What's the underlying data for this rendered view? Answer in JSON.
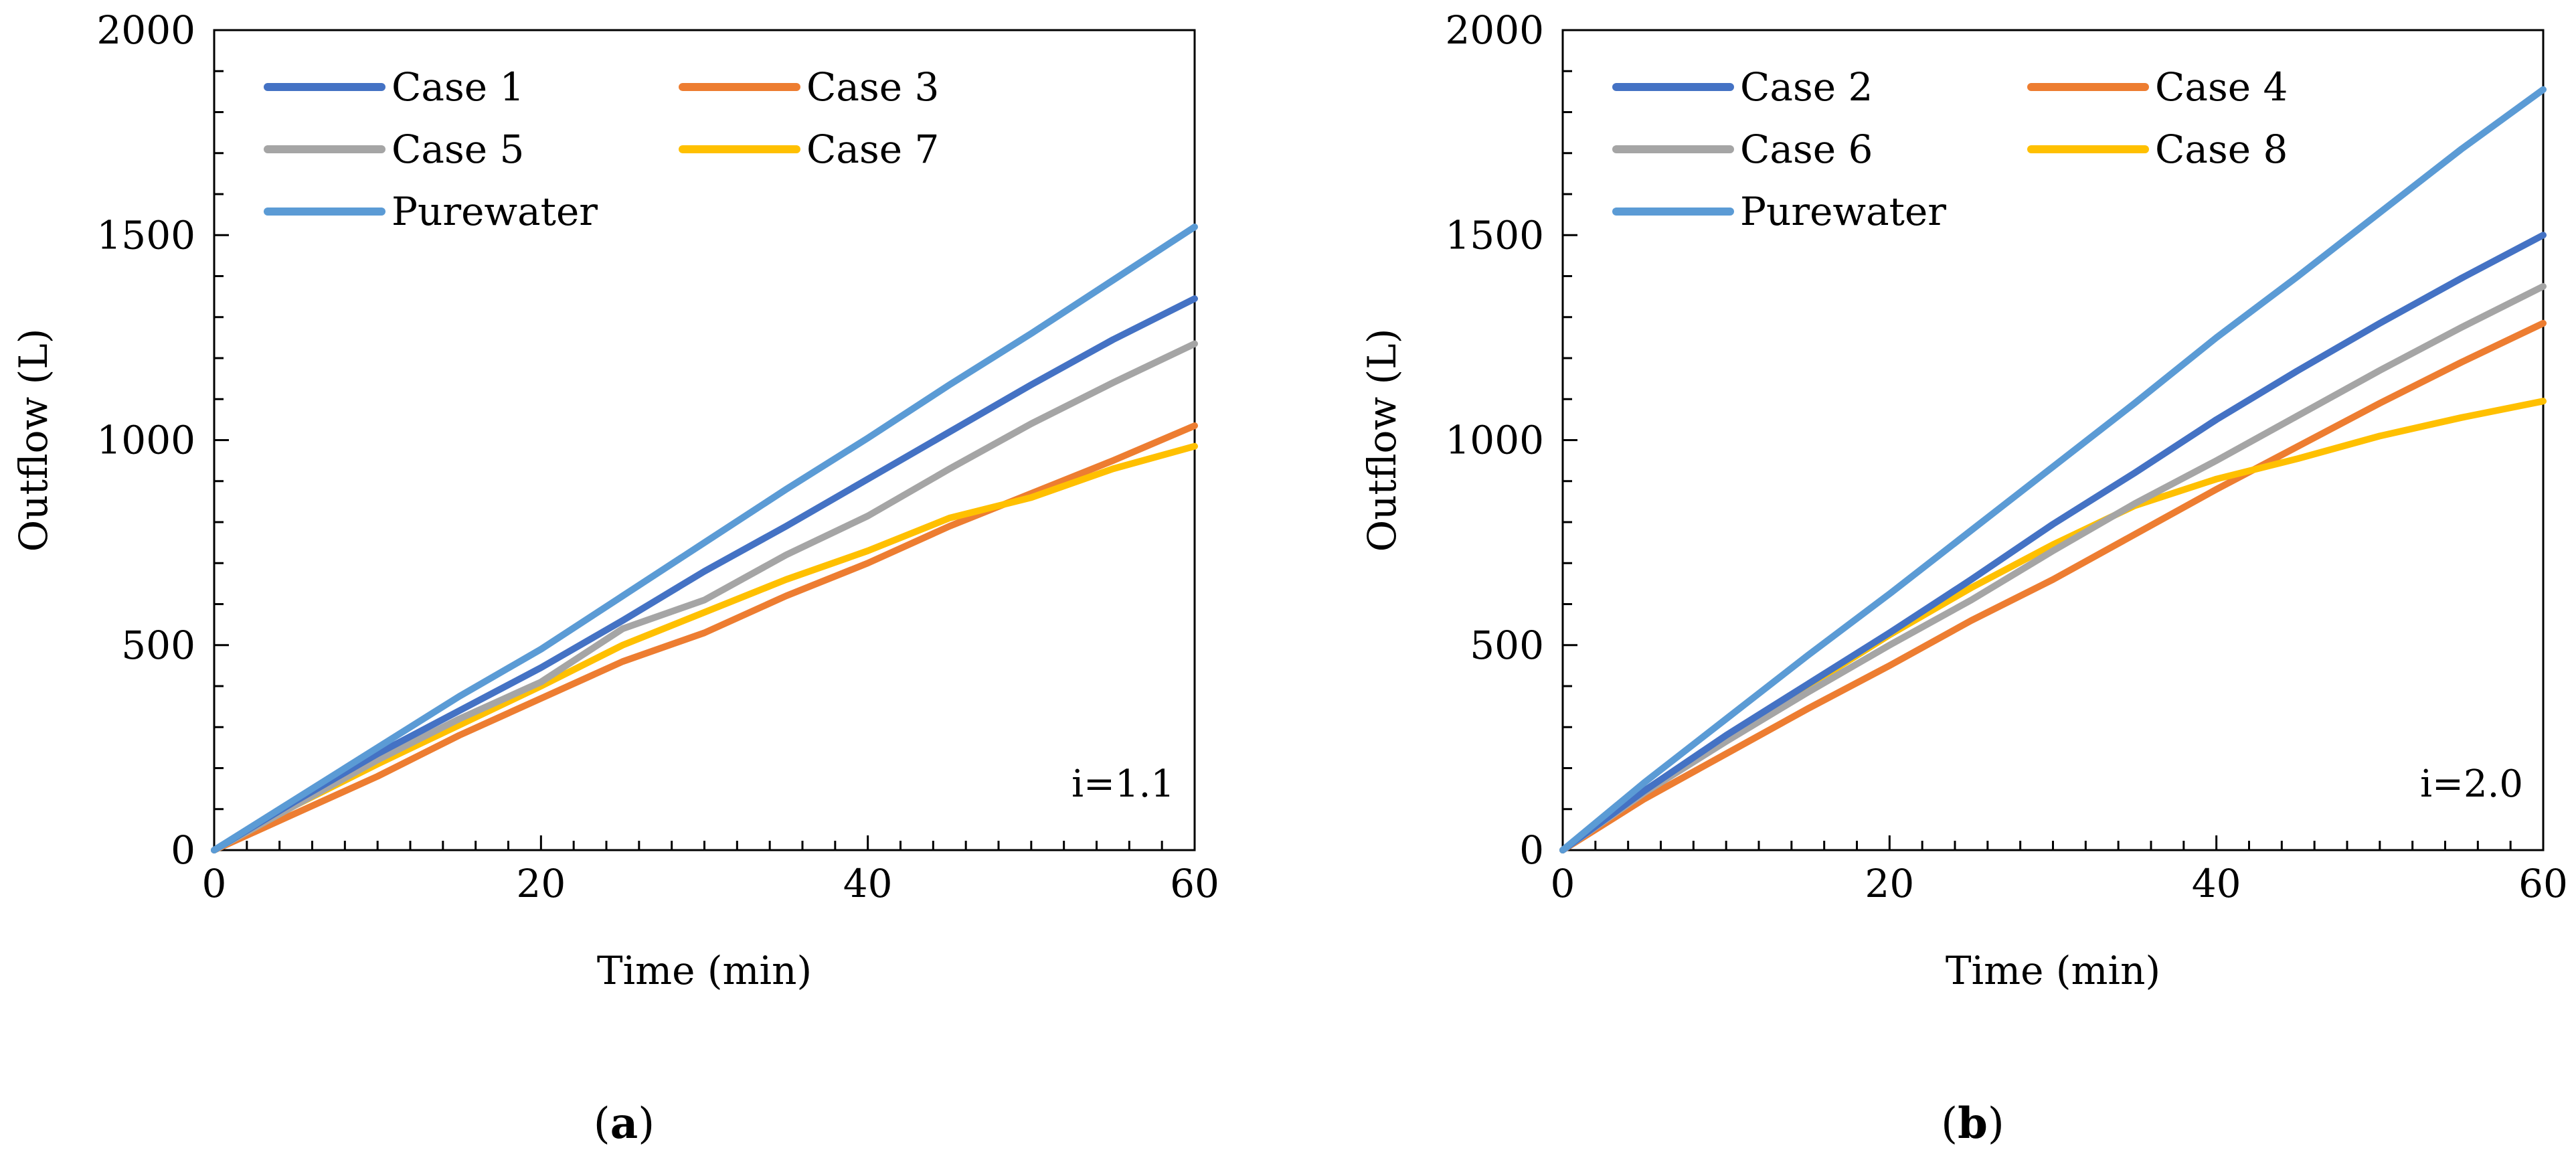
{
  "chart_data": [
    {
      "type": "line",
      "panel_label": "a",
      "annotation": "i=1.1",
      "xlabel": "Time (min)",
      "ylabel": "Outflow (L)",
      "xlim": [
        0,
        60
      ],
      "ylim": [
        0,
        2000
      ],
      "xticks": [
        0,
        20,
        40,
        60
      ],
      "yticks": [
        0,
        500,
        1000,
        1500,
        2000
      ],
      "legend": "top-left, 2 columns",
      "x": [
        0,
        5,
        10,
        15,
        20,
        25,
        30,
        35,
        40,
        45,
        50,
        55,
        60
      ],
      "series": [
        {
          "name": "Case 1",
          "color": "#4472C4",
          "values": [
            0,
            120,
            235,
            340,
            445,
            560,
            680,
            790,
            905,
            1020,
            1135,
            1245,
            1345
          ]
        },
        {
          "name": "Case 3",
          "color": "#ED7D31",
          "values": [
            0,
            90,
            180,
            280,
            370,
            460,
            530,
            620,
            700,
            790,
            870,
            950,
            1035
          ]
        },
        {
          "name": "Case 5",
          "color": "#A5A5A5",
          "values": [
            0,
            110,
            220,
            320,
            410,
            540,
            610,
            720,
            815,
            930,
            1040,
            1140,
            1235
          ]
        },
        {
          "name": "Case 7",
          "color": "#FFC000",
          "values": [
            0,
            110,
            210,
            305,
            400,
            500,
            580,
            660,
            730,
            810,
            860,
            930,
            985
          ]
        },
        {
          "name": "Purewater",
          "color": "#5B9BD5",
          "values": [
            0,
            125,
            250,
            375,
            490,
            620,
            750,
            880,
            1005,
            1135,
            1260,
            1390,
            1520
          ]
        }
      ]
    },
    {
      "type": "line",
      "panel_label": "b",
      "annotation": "i=2.0",
      "xlabel": "Time (min)",
      "ylabel": "Outflow (L)",
      "xlim": [
        0,
        60
      ],
      "ylim": [
        0,
        2000
      ],
      "xticks": [
        0,
        20,
        40,
        60
      ],
      "yticks": [
        0,
        500,
        1000,
        1500,
        2000
      ],
      "legend": "top-left, 2 columns",
      "x": [
        0,
        5,
        10,
        15,
        20,
        25,
        30,
        35,
        40,
        45,
        50,
        55,
        60
      ],
      "series": [
        {
          "name": "Case 2",
          "color": "#4472C4",
          "values": [
            0,
            145,
            280,
            405,
            530,
            660,
            795,
            920,
            1050,
            1170,
            1285,
            1395,
            1500
          ]
        },
        {
          "name": "Case 4",
          "color": "#ED7D31",
          "values": [
            0,
            125,
            235,
            345,
            450,
            560,
            660,
            770,
            880,
            985,
            1090,
            1190,
            1285
          ]
        },
        {
          "name": "Case 6",
          "color": "#A5A5A5",
          "values": [
            0,
            140,
            265,
            385,
            500,
            610,
            730,
            845,
            950,
            1060,
            1170,
            1275,
            1375
          ]
        },
        {
          "name": "Case 8",
          "color": "#FFC000",
          "values": [
            0,
            145,
            275,
            400,
            525,
            640,
            745,
            840,
            905,
            955,
            1010,
            1055,
            1095
          ]
        },
        {
          "name": "Purewater",
          "color": "#5B9BD5",
          "values": [
            0,
            165,
            320,
            475,
            625,
            780,
            935,
            1090,
            1250,
            1400,
            1555,
            1710,
            1855
          ]
        }
      ]
    }
  ]
}
